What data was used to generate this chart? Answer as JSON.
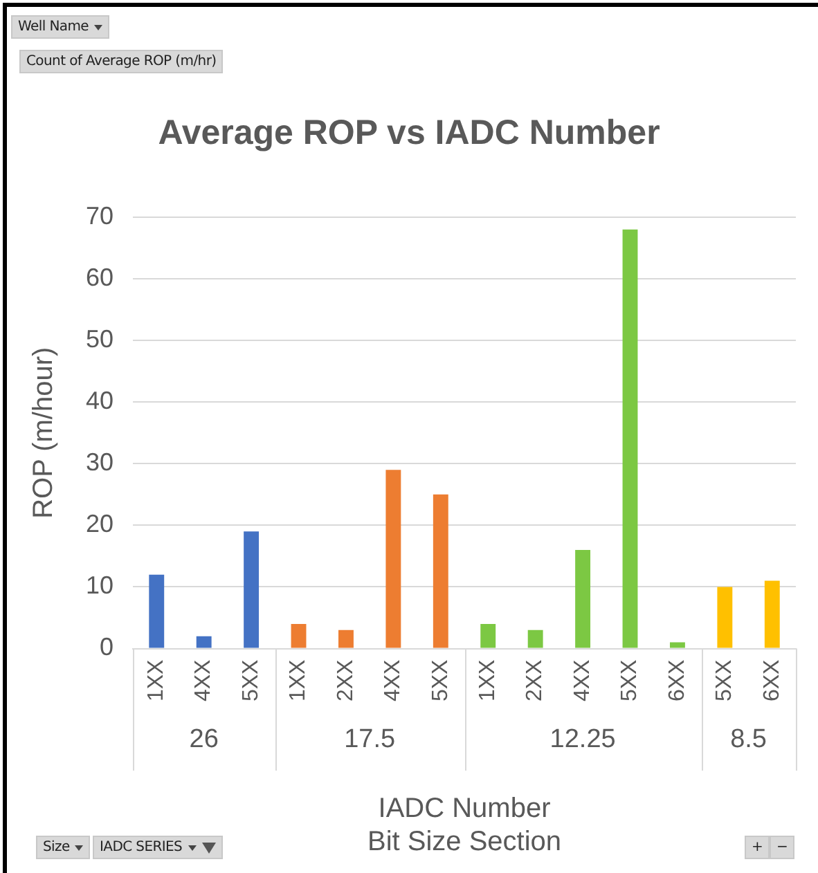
{
  "chart_data": {
    "type": "bar",
    "title": "Average ROP vs IADC Number",
    "xlabel": "IADC Number\nBit Size Section",
    "ylabel": "ROP (m/hour)",
    "categories": [
      "1XX",
      "4XX",
      "5XX",
      "1XX",
      "2XX",
      "4XX",
      "5XX",
      "1XX",
      "2XX",
      "4XX",
      "5XX",
      "6XX",
      "5XX",
      "6XX"
    ],
    "series": [
      {
        "name": "26",
        "color": "#4472c4",
        "values": [
          12,
          2,
          19,
          null,
          null,
          null,
          null,
          null,
          null,
          null,
          null,
          null,
          null,
          null
        ]
      },
      {
        "name": "17.5",
        "color": "#ed7d31",
        "values": [
          null,
          null,
          null,
          4,
          3,
          29,
          25,
          null,
          null,
          null,
          null,
          null,
          null,
          null
        ]
      },
      {
        "name": "12.25",
        "color": "#7cc843",
        "values": [
          null,
          null,
          null,
          null,
          null,
          null,
          null,
          4,
          3,
          16,
          68,
          1,
          null,
          null
        ]
      },
      {
        "name": "8.5",
        "color": "#ffc000",
        "values": [
          null,
          null,
          null,
          null,
          null,
          null,
          null,
          null,
          null,
          null,
          null,
          null,
          10,
          11
        ]
      }
    ],
    "ylim": [
      0,
      70
    ],
    "yticks": [
      0,
      10,
      20,
      30,
      40,
      50,
      60,
      70
    ],
    "grid": "y",
    "annotations": [
      "Well Name",
      "Count of Average ROP (m/hr)",
      "Size",
      "IADC SERIES",
      "+",
      "−"
    ]
  }
}
